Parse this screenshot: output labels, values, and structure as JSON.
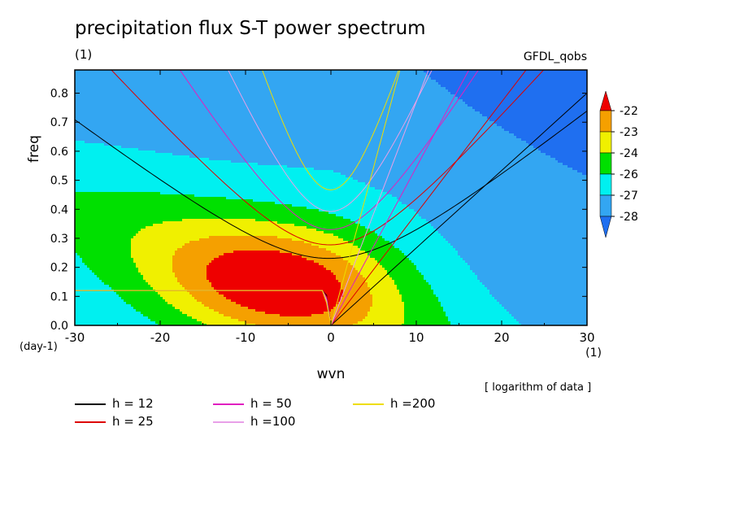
{
  "chart_data": {
    "type": "heatmap",
    "title": "precipitation flux S-T power spectrum",
    "subtitle_left": "(1)",
    "subtitle_right": "GFDL_qobs",
    "xlabel": "wvn",
    "ylabel": "freq",
    "x_unit_label": "(1)",
    "y_unit_label": "(day-1)",
    "note": "[ logarithm of data ]",
    "xlim": [
      -30,
      30
    ],
    "ylim": [
      0,
      0.88
    ],
    "x_ticks": [
      -30,
      -20,
      -10,
      0,
      10,
      20,
      30
    ],
    "y_ticks": [
      0.0,
      0.1,
      0.2,
      0.3,
      0.4,
      0.5,
      0.6,
      0.7,
      0.8
    ],
    "colorbar": {
      "levels": [
        -28,
        -27,
        -26,
        -24,
        -23,
        -22
      ],
      "colors": [
        "#1f6ff0",
        "#33a6f2",
        "#00f0f0",
        "#00e000",
        "#f0f000",
        "#f5a000",
        "#ee0000"
      ],
      "labels": [
        "-22",
        "-23",
        "-24",
        "-26",
        "-27",
        "-28"
      ]
    },
    "dispersion_curves": [
      {
        "name": "h = 12",
        "color": "#000000"
      },
      {
        "name": "h = 25",
        "color": "#dd0000"
      },
      {
        "name": "h = 50",
        "color": "#e020c0"
      },
      {
        "name": "h =100",
        "color": "#e8a0e8"
      },
      {
        "name": "h =200",
        "color": "#eedd00"
      }
    ]
  }
}
